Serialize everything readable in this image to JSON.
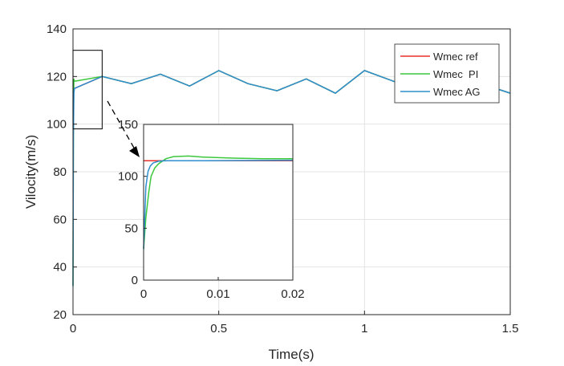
{
  "chart_data": [
    {
      "type": "line",
      "title": "",
      "xlabel": "Time(s)",
      "ylabel": "Vilocity(m/s)",
      "xlim": [
        0,
        1.5
      ],
      "ylim": [
        20,
        140
      ],
      "xticks": [
        0,
        0.5,
        1,
        1.5
      ],
      "xtick_labels": [
        "0",
        "0.5",
        "1",
        "1.5"
      ],
      "yticks": [
        20,
        40,
        60,
        80,
        100,
        120,
        140
      ],
      "ytick_labels": [
        "20",
        "40",
        "60",
        "80",
        "100",
        "120",
        "140"
      ],
      "grid": true,
      "legend": {
        "placement": "top-right",
        "entries": [
          "Wmec ref",
          "Wmec  PI",
          "Wmec AG"
        ]
      },
      "series": [
        {
          "name": "Wmec ref",
          "color": "#e8312b",
          "x": [
            0,
            0.005,
            0.1,
            0.2,
            0.3,
            0.4,
            0.5,
            0.6,
            0.7,
            0.8,
            0.9,
            1.0,
            1.1,
            1.2,
            1.3,
            1.4,
            1.5
          ],
          "y": [
            115,
            115,
            120,
            117,
            121,
            116,
            122.5,
            117,
            114,
            119,
            113,
            122.5,
            118,
            114,
            120,
            117,
            113
          ]
        },
        {
          "name": "Wmec  PI",
          "color": "#3cc83c",
          "x": [
            0,
            0.0015,
            0.003,
            0.005,
            0.1,
            0.2,
            0.3,
            0.4,
            0.5,
            0.6,
            0.7,
            0.8,
            0.9,
            1.0,
            1.1,
            1.2,
            1.3,
            1.4,
            1.5
          ],
          "y": [
            32,
            100,
            119,
            118,
            120,
            117,
            121,
            116,
            122.5,
            117,
            114,
            119,
            113,
            122.5,
            118,
            114,
            120,
            117,
            113
          ]
        },
        {
          "name": "Wmec AG",
          "color": "#2f8fce",
          "x": [
            0,
            0.0015,
            0.003,
            0.005,
            0.1,
            0.2,
            0.3,
            0.4,
            0.5,
            0.6,
            0.7,
            0.8,
            0.9,
            1.0,
            1.1,
            1.2,
            1.3,
            1.4,
            1.5
          ],
          "y": [
            32,
            95,
            113,
            115,
            120,
            117,
            121,
            116,
            122.5,
            117,
            114,
            119,
            113,
            122.5,
            118,
            114,
            120,
            117,
            113
          ]
        }
      ],
      "zoom_box": {
        "xlim": [
          0,
          0.1
        ],
        "ylim": [
          98,
          131
        ]
      }
    },
    {
      "type": "line",
      "title": "",
      "xlabel": "",
      "ylabel": "",
      "xlim": [
        0,
        0.02
      ],
      "ylim": [
        0,
        150
      ],
      "xticks": [
        0,
        0.01,
        0.02
      ],
      "xtick_labels": [
        "0",
        "0.01",
        "0.02"
      ],
      "yticks": [
        0,
        50,
        100,
        150
      ],
      "ytick_labels": [
        "0",
        "50",
        "100",
        "150"
      ],
      "grid": false,
      "series": [
        {
          "name": "",
          "color": "#e8312b",
          "x": [
            0,
            0.02
          ],
          "y": [
            115,
            115
          ]
        },
        {
          "name": "",
          "color": "#3cc83c",
          "x": [
            0,
            0.0003,
            0.0007,
            0.001,
            0.0015,
            0.002,
            0.003,
            0.004,
            0.006,
            0.008,
            0.012,
            0.016,
            0.02
          ],
          "y": [
            30,
            60,
            85,
            100,
            108,
            112,
            117,
            119,
            119.5,
            118.5,
            117.5,
            117,
            117
          ]
        },
        {
          "name": "",
          "color": "#2f8fce",
          "x": [
            0,
            0.0003,
            0.0006,
            0.0009,
            0.0013,
            0.002,
            0.003,
            0.006,
            0.02
          ],
          "y": [
            30,
            90,
            105,
            110,
            113,
            114.5,
            115,
            115,
            115.5
          ]
        }
      ]
    }
  ]
}
